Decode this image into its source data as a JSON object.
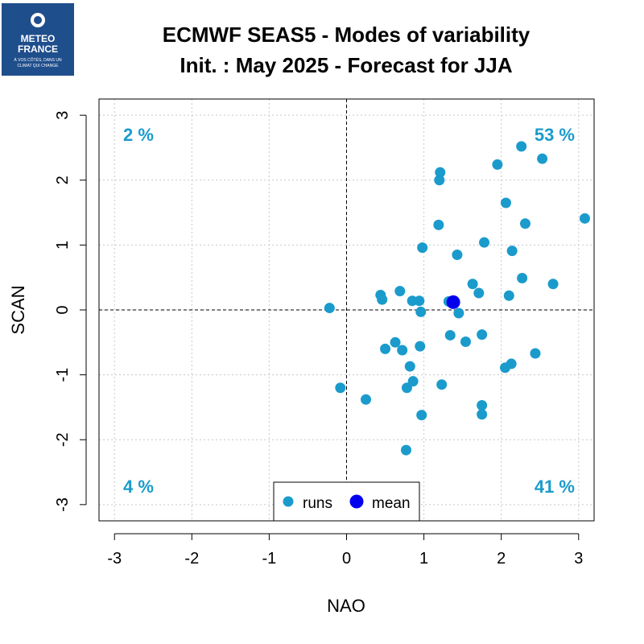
{
  "logo": {
    "line1": "METEO",
    "line2": "FRANCE",
    "tagline1": "À VOS CÔTÉS, DANS UN",
    "tagline2": "CLIMAT QUI CHANGE",
    "color": "#1f4e8c"
  },
  "header": {
    "title_line1": "ECMWF SEAS5 - Modes of variability",
    "title_line2": "Init. : May 2025 - Forecast for JJA"
  },
  "chart_data": {
    "type": "scatter",
    "xlabel": "NAO",
    "ylabel": "SCAN",
    "xlim": [
      -3.2,
      3.2
    ],
    "ylim": [
      -3.25,
      3.25
    ],
    "xticks": [
      -3,
      -2,
      -1,
      0,
      1,
      2,
      3
    ],
    "yticks": [
      -3,
      -2,
      -1,
      0,
      1,
      2,
      3
    ],
    "grid": true,
    "quadrant_labels": {
      "top_left": "2 %",
      "top_right": "53 %",
      "bottom_left": "4 %",
      "bottom_right": "41 %"
    },
    "quadrant_label_color": "#1a9bcc",
    "legend": {
      "placement": "bottom-center",
      "runs_label": "runs",
      "mean_label": "mean"
    },
    "series": [
      {
        "name": "runs",
        "color": "#1a9bcc",
        "points": [
          [
            -0.22,
            0.03
          ],
          [
            -0.08,
            -1.2
          ],
          [
            0.25,
            -1.38
          ],
          [
            0.44,
            0.23
          ],
          [
            0.46,
            0.16
          ],
          [
            0.5,
            -0.6
          ],
          [
            0.63,
            -0.5
          ],
          [
            0.69,
            0.29
          ],
          [
            0.72,
            -0.62
          ],
          [
            0.77,
            -2.16
          ],
          [
            0.78,
            -1.2
          ],
          [
            0.82,
            -0.87
          ],
          [
            0.85,
            0.14
          ],
          [
            0.86,
            -1.1
          ],
          [
            0.94,
            0.14
          ],
          [
            0.95,
            -0.56
          ],
          [
            0.96,
            -0.03
          ],
          [
            0.97,
            -1.62
          ],
          [
            0.98,
            0.96
          ],
          [
            1.19,
            1.31
          ],
          [
            1.2,
            2.0
          ],
          [
            1.21,
            2.12
          ],
          [
            1.23,
            -1.15
          ],
          [
            1.32,
            0.13
          ],
          [
            1.34,
            -0.39
          ],
          [
            1.43,
            0.85
          ],
          [
            1.45,
            -0.05
          ],
          [
            1.54,
            -0.49
          ],
          [
            1.63,
            0.4
          ],
          [
            1.71,
            0.26
          ],
          [
            1.75,
            -0.38
          ],
          [
            1.75,
            -1.47
          ],
          [
            1.75,
            -1.61
          ],
          [
            1.78,
            1.04
          ],
          [
            1.95,
            2.24
          ],
          [
            2.05,
            -0.89
          ],
          [
            2.06,
            1.65
          ],
          [
            2.1,
            0.22
          ],
          [
            2.13,
            -0.83
          ],
          [
            2.14,
            0.91
          ],
          [
            2.26,
            2.52
          ],
          [
            2.27,
            0.49
          ],
          [
            2.31,
            1.33
          ],
          [
            2.44,
            -0.67
          ],
          [
            2.53,
            2.33
          ],
          [
            2.67,
            0.4
          ],
          [
            3.08,
            1.41
          ]
        ]
      },
      {
        "name": "mean",
        "color": "#0000ee",
        "points": [
          [
            1.38,
            0.12
          ]
        ]
      }
    ]
  }
}
